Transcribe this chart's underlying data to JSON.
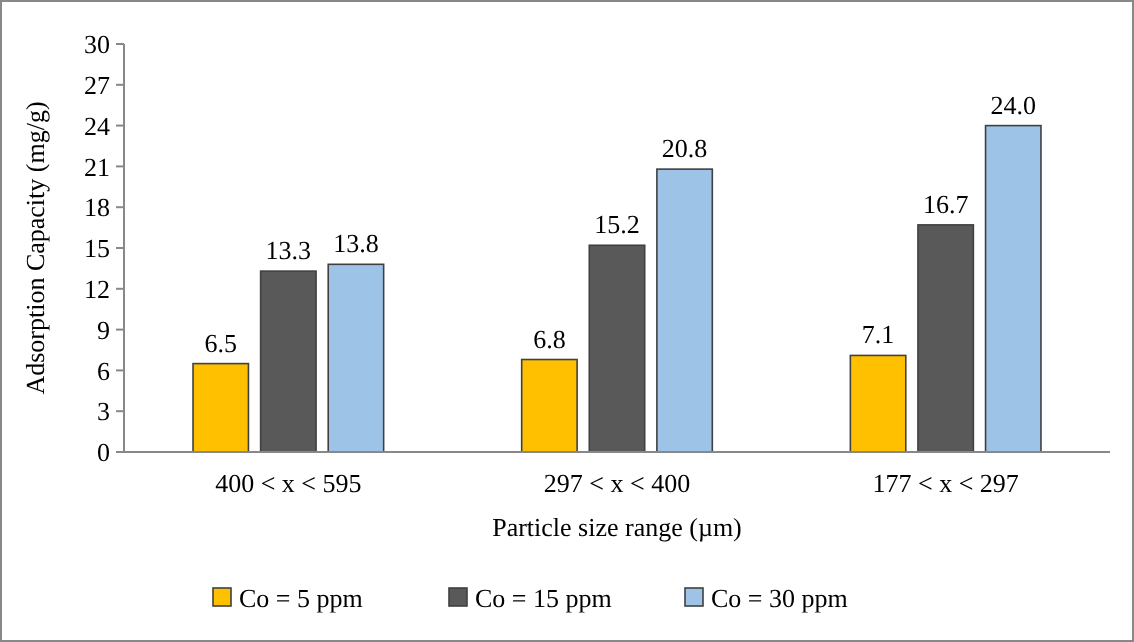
{
  "chart_data": {
    "type": "bar",
    "xlabel": "Particle size range (µm)",
    "ylabel": "Adsorption Capacity (mg/g)",
    "categories": [
      "400 < x < 595",
      "297 < x < 400",
      "177 < x < 297"
    ],
    "series": [
      {
        "name": "Co = 5 ppm",
        "color": "#ffc000",
        "values": [
          6.5,
          6.8,
          7.1
        ],
        "value_labels": [
          "6.5",
          "6.8",
          "7.1"
        ]
      },
      {
        "name": "Co = 15 ppm",
        "color": "#595959",
        "values": [
          13.3,
          15.2,
          16.7
        ],
        "value_labels": [
          "13.3",
          "15.2",
          "16.7"
        ]
      },
      {
        "name": "Co = 30 ppm",
        "color": "#9dc3e6",
        "values": [
          13.8,
          20.8,
          24.0
        ],
        "value_labels": [
          "13.8",
          "20.8",
          "24.0"
        ]
      }
    ],
    "ylim": [
      0,
      30
    ],
    "yticks": [
      0,
      3,
      6,
      9,
      12,
      15,
      18,
      21,
      24,
      27,
      30
    ],
    "legend": "bottom"
  }
}
